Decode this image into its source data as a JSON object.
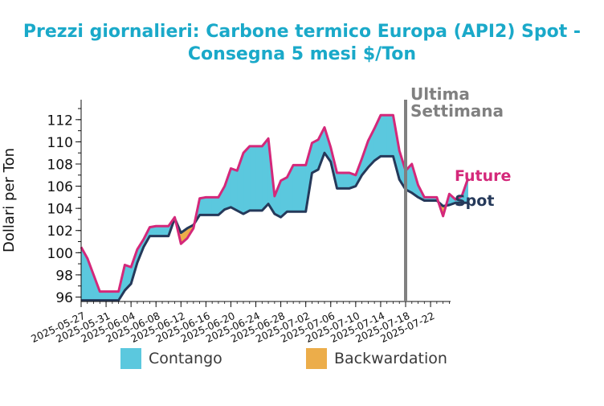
{
  "title_lines": [
    "Prezzi giornalieri: Carbone termico Europa (API2) Spot -",
    "Consegna 5 mesi $/Ton"
  ],
  "colors": {
    "title": "#1aa9c9",
    "future": "#d4287a",
    "spot": "#25395a",
    "contango": "#5bc8de",
    "backwardation": "#ecad4a",
    "last_week_line": "#808080"
  },
  "legend": {
    "contango": "Contango",
    "backwardation": "Backwardation"
  },
  "chart_data": {
    "type": "line",
    "title": "Prezzi giornalieri: Carbone termico Europa (API2) Spot - Consegna 5 mesi $/Ton",
    "ylabel": "Dollari per Ton",
    "xlabel": "",
    "ylim": [
      95.6,
      113.8
    ],
    "xlim": [
      "2025-05-27",
      "2025-07-26"
    ],
    "yticks": [
      96,
      98,
      100,
      102,
      104,
      106,
      108,
      110,
      112
    ],
    "xticks": [
      "2025-05-27",
      "2025-05-31",
      "2025-06-04",
      "2025-06-08",
      "2025-06-12",
      "2025-06-16",
      "2025-06-20",
      "2025-06-24",
      "2025-06-28",
      "2025-07-02",
      "2025-07-06",
      "2025-07-10",
      "2025-07-14",
      "2025-07-18",
      "2025-07-22"
    ],
    "annotation": {
      "text_lines": [
        "Ultima",
        "Settimana"
      ],
      "x": "2025-07-18"
    },
    "end_labels": {
      "future": "Future",
      "spot": "Spot"
    },
    "series": [
      {
        "name": "Future",
        "points": [
          [
            "2025-05-27",
            100.5
          ],
          [
            "2025-05-28",
            99.5
          ],
          [
            "2025-05-29",
            98.0
          ],
          [
            "2025-05-30",
            96.5
          ],
          [
            "2025-05-31",
            96.5
          ],
          [
            "2025-06-01",
            96.5
          ],
          [
            "2025-06-02",
            96.5
          ],
          [
            "2025-06-03",
            98.9
          ],
          [
            "2025-06-04",
            98.7
          ],
          [
            "2025-06-05",
            100.3
          ],
          [
            "2025-06-06",
            101.2
          ],
          [
            "2025-06-07",
            102.3
          ],
          [
            "2025-06-08",
            102.4
          ],
          [
            "2025-06-09",
            102.4
          ],
          [
            "2025-06-10",
            102.4
          ],
          [
            "2025-06-11",
            103.2
          ],
          [
            "2025-06-12",
            100.8
          ],
          [
            "2025-06-13",
            101.3
          ],
          [
            "2025-06-14",
            102.2
          ],
          [
            "2025-06-15",
            104.9
          ],
          [
            "2025-06-16",
            105.0
          ],
          [
            "2025-06-17",
            105.0
          ],
          [
            "2025-06-18",
            105.0
          ],
          [
            "2025-06-19",
            106.0
          ],
          [
            "2025-06-20",
            107.6
          ],
          [
            "2025-06-21",
            107.4
          ],
          [
            "2025-06-22",
            109.0
          ],
          [
            "2025-06-23",
            109.6
          ],
          [
            "2025-06-24",
            109.6
          ],
          [
            "2025-06-25",
            109.6
          ],
          [
            "2025-06-26",
            110.3
          ],
          [
            "2025-06-27",
            105.1
          ],
          [
            "2025-06-28",
            106.5
          ],
          [
            "2025-06-29",
            106.8
          ],
          [
            "2025-06-30",
            107.9
          ],
          [
            "2025-07-01",
            107.9
          ],
          [
            "2025-07-02",
            107.9
          ],
          [
            "2025-07-03",
            109.9
          ],
          [
            "2025-07-04",
            110.2
          ],
          [
            "2025-07-05",
            111.3
          ],
          [
            "2025-07-06",
            109.5
          ],
          [
            "2025-07-07",
            107.2
          ],
          [
            "2025-07-08",
            107.2
          ],
          [
            "2025-07-09",
            107.2
          ],
          [
            "2025-07-10",
            107.0
          ],
          [
            "2025-07-11",
            108.5
          ],
          [
            "2025-07-12",
            110.1
          ],
          [
            "2025-07-13",
            111.2
          ],
          [
            "2025-07-14",
            112.4
          ],
          [
            "2025-07-15",
            112.4
          ],
          [
            "2025-07-16",
            112.4
          ],
          [
            "2025-07-17",
            109.2
          ],
          [
            "2025-07-18",
            107.4
          ],
          [
            "2025-07-19",
            108.0
          ],
          [
            "2025-07-20",
            106.1
          ],
          [
            "2025-07-21",
            105.0
          ],
          [
            "2025-07-22",
            105.0
          ],
          [
            "2025-07-23",
            105.0
          ],
          [
            "2025-07-24",
            103.3
          ],
          [
            "2025-07-25",
            105.3
          ],
          [
            "2025-07-26",
            104.8
          ],
          [
            "2025-07-27",
            105.1
          ],
          [
            "2025-07-28",
            106.7
          ]
        ]
      },
      {
        "name": "Spot",
        "points": [
          [
            "2025-05-27",
            95.7
          ],
          [
            "2025-05-28",
            95.7
          ],
          [
            "2025-05-29",
            95.7
          ],
          [
            "2025-05-30",
            95.7
          ],
          [
            "2025-05-31",
            95.7
          ],
          [
            "2025-06-01",
            95.7
          ],
          [
            "2025-06-02",
            95.7
          ],
          [
            "2025-06-03",
            96.6
          ],
          [
            "2025-06-04",
            97.2
          ],
          [
            "2025-06-05",
            99.1
          ],
          [
            "2025-06-06",
            100.5
          ],
          [
            "2025-06-07",
            101.5
          ],
          [
            "2025-06-08",
            101.5
          ],
          [
            "2025-06-09",
            101.5
          ],
          [
            "2025-06-10",
            101.5
          ],
          [
            "2025-06-11",
            103.1
          ],
          [
            "2025-06-12",
            101.8
          ],
          [
            "2025-06-13",
            102.2
          ],
          [
            "2025-06-14",
            102.5
          ],
          [
            "2025-06-15",
            103.4
          ],
          [
            "2025-06-16",
            103.4
          ],
          [
            "2025-06-17",
            103.4
          ],
          [
            "2025-06-18",
            103.4
          ],
          [
            "2025-06-19",
            103.9
          ],
          [
            "2025-06-20",
            104.1
          ],
          [
            "2025-06-21",
            103.8
          ],
          [
            "2025-06-22",
            103.5
          ],
          [
            "2025-06-23",
            103.8
          ],
          [
            "2025-06-24",
            103.8
          ],
          [
            "2025-06-25",
            103.8
          ],
          [
            "2025-06-26",
            104.4
          ],
          [
            "2025-06-27",
            103.5
          ],
          [
            "2025-06-28",
            103.2
          ],
          [
            "2025-06-29",
            103.7
          ],
          [
            "2025-06-30",
            103.7
          ],
          [
            "2025-07-01",
            103.7
          ],
          [
            "2025-07-02",
            103.7
          ],
          [
            "2025-07-03",
            107.2
          ],
          [
            "2025-07-04",
            107.5
          ],
          [
            "2025-07-05",
            109.0
          ],
          [
            "2025-07-06",
            108.2
          ],
          [
            "2025-07-07",
            105.8
          ],
          [
            "2025-07-08",
            105.8
          ],
          [
            "2025-07-09",
            105.8
          ],
          [
            "2025-07-10",
            106.0
          ],
          [
            "2025-07-11",
            107.0
          ],
          [
            "2025-07-12",
            107.7
          ],
          [
            "2025-07-13",
            108.3
          ],
          [
            "2025-07-14",
            108.7
          ],
          [
            "2025-07-15",
            108.7
          ],
          [
            "2025-07-16",
            108.7
          ],
          [
            "2025-07-17",
            106.6
          ],
          [
            "2025-07-18",
            105.7
          ],
          [
            "2025-07-19",
            105.4
          ],
          [
            "2025-07-20",
            105.0
          ],
          [
            "2025-07-21",
            104.7
          ],
          [
            "2025-07-22",
            104.7
          ],
          [
            "2025-07-23",
            104.7
          ],
          [
            "2025-07-24",
            104.2
          ],
          [
            "2025-07-25",
            104.3
          ],
          [
            "2025-07-26",
            104.5
          ],
          [
            "2025-07-27",
            104.5
          ],
          [
            "2025-07-28",
            104.5
          ]
        ]
      }
    ]
  }
}
